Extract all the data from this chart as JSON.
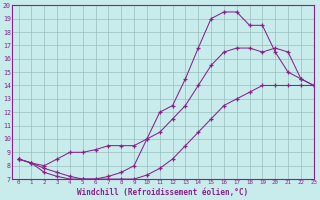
{
  "xlabel": "Windchill (Refroidissement éolien,°C)",
  "bg_color": "#c8ecec",
  "line_color": "#882288",
  "grid_color": "#9bbfbf",
  "xlim": [
    -0.5,
    23
  ],
  "ylim": [
    7,
    20
  ],
  "yticks": [
    7,
    8,
    9,
    10,
    11,
    12,
    13,
    14,
    15,
    16,
    17,
    18,
    19,
    20
  ],
  "xticks": [
    0,
    1,
    2,
    3,
    4,
    5,
    6,
    7,
    8,
    9,
    10,
    11,
    12,
    13,
    14,
    15,
    16,
    17,
    18,
    19,
    20,
    21,
    22,
    23
  ],
  "curves": [
    {
      "x": [
        0,
        1,
        2,
        3,
        4,
        5,
        6,
        7,
        8,
        9,
        10,
        11,
        12,
        13,
        14,
        15,
        16,
        17,
        18,
        19,
        20,
        21,
        22,
        23
      ],
      "y": [
        8.5,
        8.2,
        7.5,
        7.2,
        7.0,
        7.0,
        7.0,
        7.0,
        7.0,
        7.0,
        7.3,
        7.8,
        8.5,
        9.5,
        10.5,
        11.5,
        12.5,
        13.0,
        13.5,
        14.0,
        14.0,
        14.0,
        14.0,
        14.0
      ]
    },
    {
      "x": [
        0,
        1,
        2,
        3,
        4,
        5,
        6,
        7,
        8,
        9,
        10,
        11,
        12,
        13,
        14,
        15,
        16,
        17,
        18,
        19,
        20,
        21,
        22,
        23
      ],
      "y": [
        8.5,
        8.2,
        8.0,
        8.5,
        9.0,
        9.0,
        9.2,
        9.5,
        9.5,
        9.5,
        10.0,
        10.5,
        11.5,
        12.5,
        14.0,
        15.5,
        16.5,
        16.8,
        16.8,
        16.5,
        16.8,
        16.5,
        14.5,
        14.0
      ]
    },
    {
      "x": [
        0,
        1,
        2,
        3,
        4,
        5,
        6,
        7,
        8,
        9,
        10,
        11,
        12,
        13,
        14,
        15,
        16,
        17,
        18,
        19,
        20,
        21,
        22,
        23
      ],
      "y": [
        8.5,
        8.2,
        7.8,
        7.5,
        7.2,
        7.0,
        7.0,
        7.2,
        7.5,
        8.0,
        10.0,
        12.0,
        12.5,
        14.5,
        16.8,
        19.0,
        19.5,
        19.5,
        18.5,
        18.5,
        16.5,
        15.0,
        14.5,
        14.0
      ]
    }
  ]
}
